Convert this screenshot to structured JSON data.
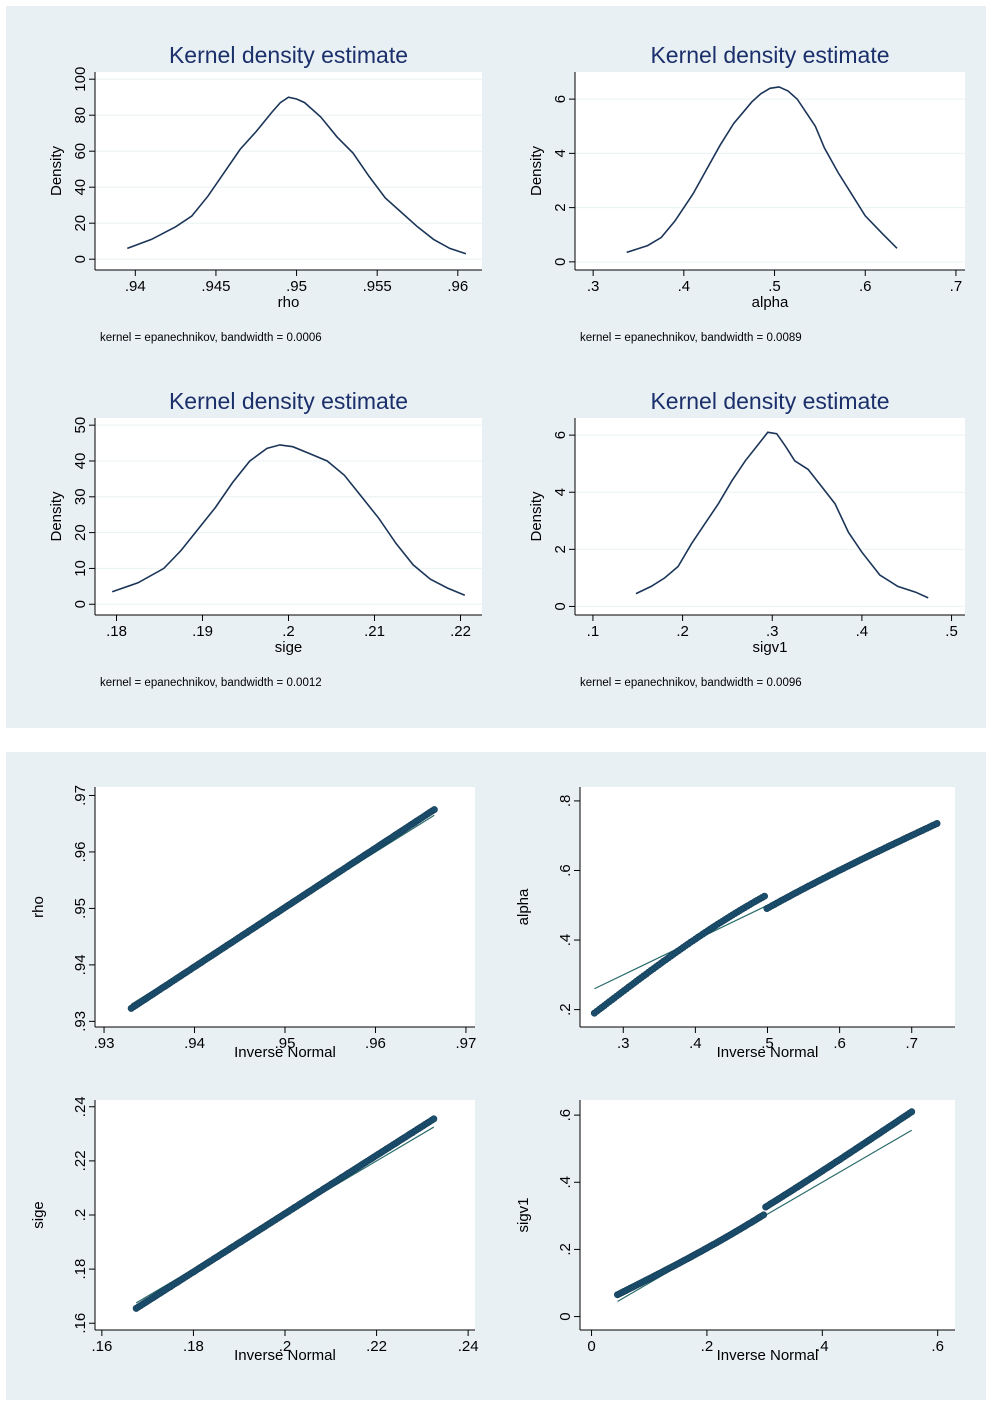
{
  "chart_data": [
    {
      "type": "line",
      "group": "kde",
      "title": "Kernel density estimate",
      "xlabel": "rho",
      "ylabel": "Density",
      "xlim": [
        0.9375,
        0.9615
      ],
      "ylim": [
        -6,
        104
      ],
      "xticks": [
        0.94,
        0.945,
        0.95,
        0.955,
        0.96
      ],
      "xtick_labels": [
        ".94",
        ".945",
        ".95",
        ".955",
        ".96"
      ],
      "yticks": [
        0,
        20,
        40,
        60,
        80,
        100
      ],
      "ytick_labels": [
        "0",
        "20",
        "40",
        "60",
        "80",
        "100"
      ],
      "note": "kernel = epanechnikov, bandwidth = 0.0006",
      "series": [
        {
          "x": [
            0.9395,
            0.941,
            0.9425,
            0.9435,
            0.9445,
            0.9455,
            0.9465,
            0.9475,
            0.9485,
            0.949,
            0.9495,
            0.95,
            0.9505,
            0.9515,
            0.9525,
            0.9535,
            0.9545,
            0.9555,
            0.9565,
            0.9575,
            0.9585,
            0.9595,
            0.9605
          ],
          "y": [
            6,
            11,
            18,
            24,
            35,
            48,
            61,
            71,
            82,
            87,
            90,
            89,
            87,
            79,
            68,
            59,
            46,
            34,
            26,
            18,
            11,
            6,
            3
          ]
        }
      ]
    },
    {
      "type": "line",
      "group": "kde",
      "title": "Kernel density estimate",
      "xlabel": "alpha",
      "ylabel": "Density",
      "xlim": [
        0.28,
        0.71
      ],
      "ylim": [
        -0.3,
        7.0
      ],
      "xticks": [
        0.3,
        0.4,
        0.5,
        0.6,
        0.7
      ],
      "xtick_labels": [
        ".3",
        ".4",
        ".5",
        ".6",
        ".7"
      ],
      "yticks": [
        0,
        2,
        4,
        6
      ],
      "ytick_labels": [
        "0",
        "2",
        "4",
        "6"
      ],
      "note": "kernel = epanechnikov, bandwidth = 0.0089",
      "series": [
        {
          "x": [
            0.337,
            0.36,
            0.375,
            0.39,
            0.41,
            0.425,
            0.44,
            0.455,
            0.465,
            0.475,
            0.485,
            0.495,
            0.505,
            0.515,
            0.525,
            0.535,
            0.545,
            0.555,
            0.57,
            0.585,
            0.6,
            0.62,
            0.635
          ],
          "y": [
            0.35,
            0.6,
            0.9,
            1.5,
            2.5,
            3.4,
            4.3,
            5.1,
            5.5,
            5.9,
            6.2,
            6.4,
            6.45,
            6.3,
            6.0,
            5.5,
            5.0,
            4.2,
            3.3,
            2.5,
            1.7,
            1.0,
            0.5
          ]
        }
      ]
    },
    {
      "type": "line",
      "group": "kde",
      "title": "Kernel density estimate",
      "xlabel": "sige",
      "ylabel": "Density",
      "xlim": [
        0.1775,
        0.2225
      ],
      "ylim": [
        -3,
        52
      ],
      "xticks": [
        0.18,
        0.19,
        0.2,
        0.21,
        0.22
      ],
      "xtick_labels": [
        ".18",
        ".19",
        ".2",
        ".21",
        ".22"
      ],
      "yticks": [
        0,
        10,
        20,
        30,
        40,
        50
      ],
      "ytick_labels": [
        "0",
        "10",
        "20",
        "30",
        "40",
        "50"
      ],
      "note": "kernel = epanechnikov, bandwidth = 0.0012",
      "series": [
        {
          "x": [
            0.1795,
            0.1825,
            0.1855,
            0.1875,
            0.1895,
            0.1915,
            0.1935,
            0.1955,
            0.1975,
            0.199,
            0.2005,
            0.2025,
            0.2045,
            0.2065,
            0.2085,
            0.2105,
            0.2125,
            0.2145,
            0.2165,
            0.2185,
            0.2205
          ],
          "y": [
            3.5,
            6,
            10,
            15,
            21,
            27,
            34,
            40,
            43.5,
            44.5,
            44,
            42,
            40,
            36,
            30,
            24,
            17,
            11,
            7,
            4.5,
            2.5
          ]
        }
      ]
    },
    {
      "type": "line",
      "group": "kde",
      "title": "Kernel density estimate",
      "xlabel": "sigv1",
      "ylabel": "Density",
      "xlim": [
        0.08,
        0.515
      ],
      "ylim": [
        -0.3,
        6.6
      ],
      "xticks": [
        0.1,
        0.2,
        0.3,
        0.4,
        0.5
      ],
      "xtick_labels": [
        ".1",
        ".2",
        ".3",
        ".4",
        ".5"
      ],
      "yticks": [
        0,
        2,
        4,
        6
      ],
      "ytick_labels": [
        "0",
        "2",
        "4",
        "6"
      ],
      "note": "kernel = epanechnikov, bandwidth = 0.0096",
      "series": [
        {
          "x": [
            0.148,
            0.165,
            0.18,
            0.195,
            0.21,
            0.225,
            0.24,
            0.255,
            0.27,
            0.285,
            0.295,
            0.305,
            0.315,
            0.325,
            0.34,
            0.355,
            0.37,
            0.385,
            0.4,
            0.42,
            0.44,
            0.46,
            0.474
          ],
          "y": [
            0.45,
            0.7,
            1.0,
            1.4,
            2.2,
            2.9,
            3.6,
            4.4,
            5.1,
            5.7,
            6.1,
            6.05,
            5.6,
            5.1,
            4.8,
            4.2,
            3.6,
            2.6,
            1.9,
            1.1,
            0.7,
            0.5,
            0.3
          ]
        }
      ]
    },
    {
      "type": "scatter",
      "group": "qq",
      "xlabel": "Inverse Normal",
      "ylabel": "rho",
      "xlim": [
        0.929,
        0.971
      ],
      "ylim": [
        0.929,
        0.9715
      ],
      "xticks": [
        0.93,
        0.94,
        0.95,
        0.96,
        0.97
      ],
      "xtick_labels": [
        ".93",
        ".94",
        ".95",
        ".96",
        ".97"
      ],
      "yticks": [
        0.93,
        0.94,
        0.95,
        0.96,
        0.97
      ],
      "ytick_labels": [
        ".93",
        ".94",
        ".95",
        ".96",
        ".97"
      ],
      "x_range": [
        0.933,
        0.9665
      ],
      "y_range": [
        0.9323,
        0.9675
      ],
      "ref_line": [
        [
          0.933,
          0.933
        ],
        [
          0.9665,
          0.9665
        ]
      ]
    },
    {
      "type": "scatter",
      "group": "qq",
      "xlabel": "Inverse Normal",
      "ylabel": "alpha",
      "xlim": [
        0.24,
        0.76
      ],
      "ylim": [
        0.15,
        0.84
      ],
      "xticks": [
        0.3,
        0.4,
        0.5,
        0.6,
        0.7
      ],
      "xtick_labels": [
        ".3",
        ".4",
        ".5",
        ".6",
        ".7"
      ],
      "yticks": [
        0.2,
        0.4,
        0.6,
        0.8
      ],
      "ytick_labels": [
        ".2",
        ".4",
        ".6",
        ".8"
      ],
      "x_range": [
        0.26,
        0.735
      ],
      "y_range": [
        0.19,
        0.735
      ],
      "ref_line": [
        [
          0.26,
          0.26
        ],
        [
          0.735,
          0.735
        ]
      ]
    },
    {
      "type": "scatter",
      "group": "qq",
      "xlabel": "Inverse Normal",
      "ylabel": "sige",
      "xlim": [
        0.1585,
        0.2415
      ],
      "ylim": [
        0.1575,
        0.2425
      ],
      "xticks": [
        0.16,
        0.18,
        0.2,
        0.22,
        0.24
      ],
      "xtick_labels": [
        ".16",
        ".18",
        ".2",
        ".22",
        ".24"
      ],
      "yticks": [
        0.16,
        0.18,
        0.2,
        0.22,
        0.24
      ],
      "ytick_labels": [
        ".16",
        ".18",
        ".2",
        ".22",
        ".24"
      ],
      "x_range": [
        0.1675,
        0.2325
      ],
      "y_range": [
        0.1655,
        0.2355
      ],
      "ref_line": [
        [
          0.1675,
          0.1675
        ],
        [
          0.2325,
          0.2325
        ]
      ]
    },
    {
      "type": "scatter",
      "group": "qq",
      "xlabel": "Inverse Normal",
      "ylabel": "sigv1",
      "xlim": [
        -0.02,
        0.63
      ],
      "ylim": [
        -0.04,
        0.645
      ],
      "xticks": [
        0,
        0.2,
        0.4,
        0.6
      ],
      "xtick_labels": [
        "0",
        ".2",
        ".4",
        ".6"
      ],
      "yticks": [
        0,
        0.2,
        0.4,
        0.6
      ],
      "ytick_labels": [
        "0",
        ".2",
        ".4",
        ".6"
      ],
      "x_range": [
        0.045,
        0.555
      ],
      "y_range": [
        0.065,
        0.61
      ],
      "ref_line": [
        [
          0.045,
          0.045
        ],
        [
          0.555,
          0.555
        ]
      ]
    }
  ]
}
